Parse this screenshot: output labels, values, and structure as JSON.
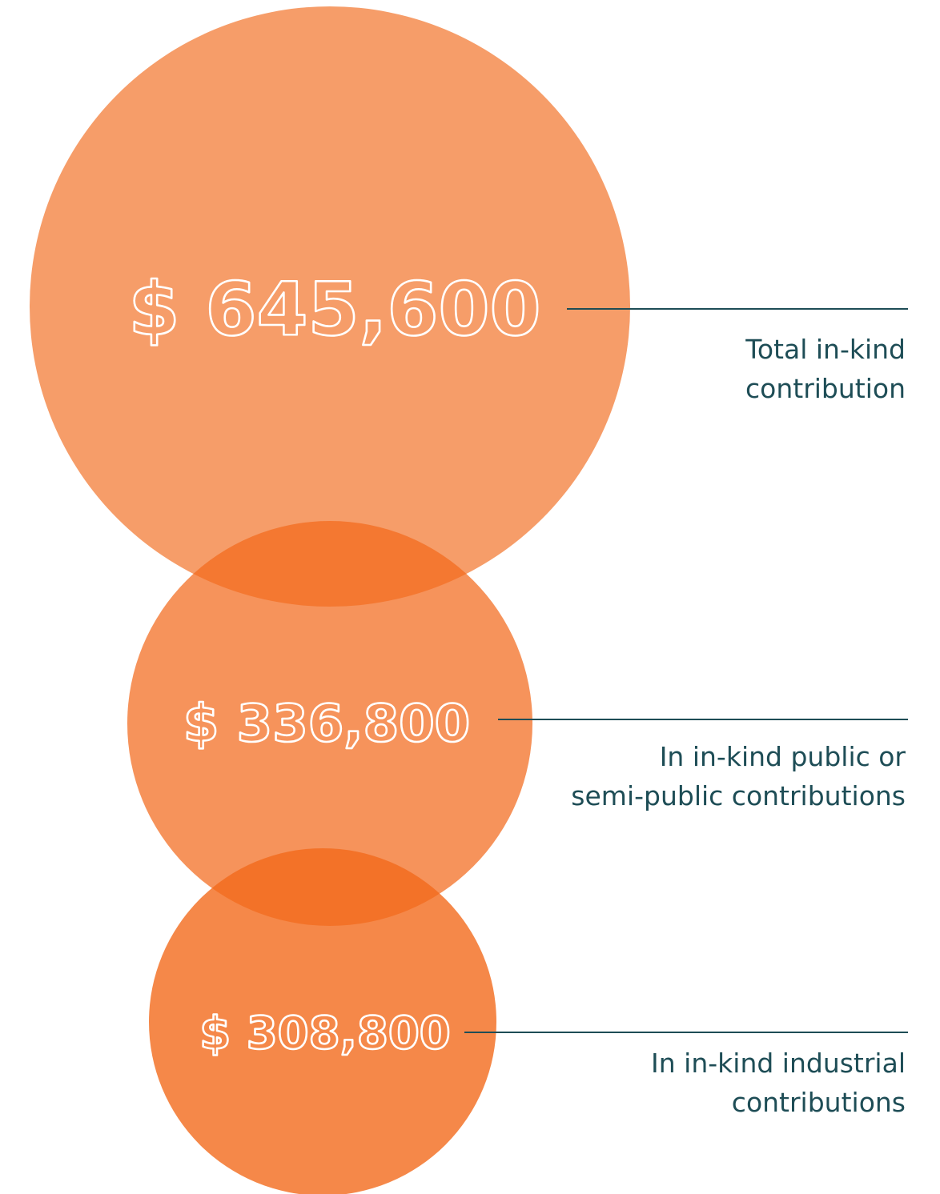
{
  "chart_data": {
    "type": "bubble",
    "title": "",
    "colors": {
      "bubble_fill": "#f26a1c",
      "value_text": "#ffffff",
      "label_text": "#1e4d56",
      "leader_line": "#1e4d56"
    },
    "items": [
      {
        "value": 645600,
        "value_label": "$ 645,600",
        "label_lines": [
          "Total in-kind",
          "contribution"
        ]
      },
      {
        "value": 336800,
        "value_label": "$ 336,800",
        "label_lines": [
          "In in-kind public or",
          "semi-public contributions"
        ]
      },
      {
        "value": 308800,
        "value_label": "$ 308,800",
        "label_lines": [
          "In in-kind industrial",
          "contributions"
        ]
      }
    ]
  }
}
